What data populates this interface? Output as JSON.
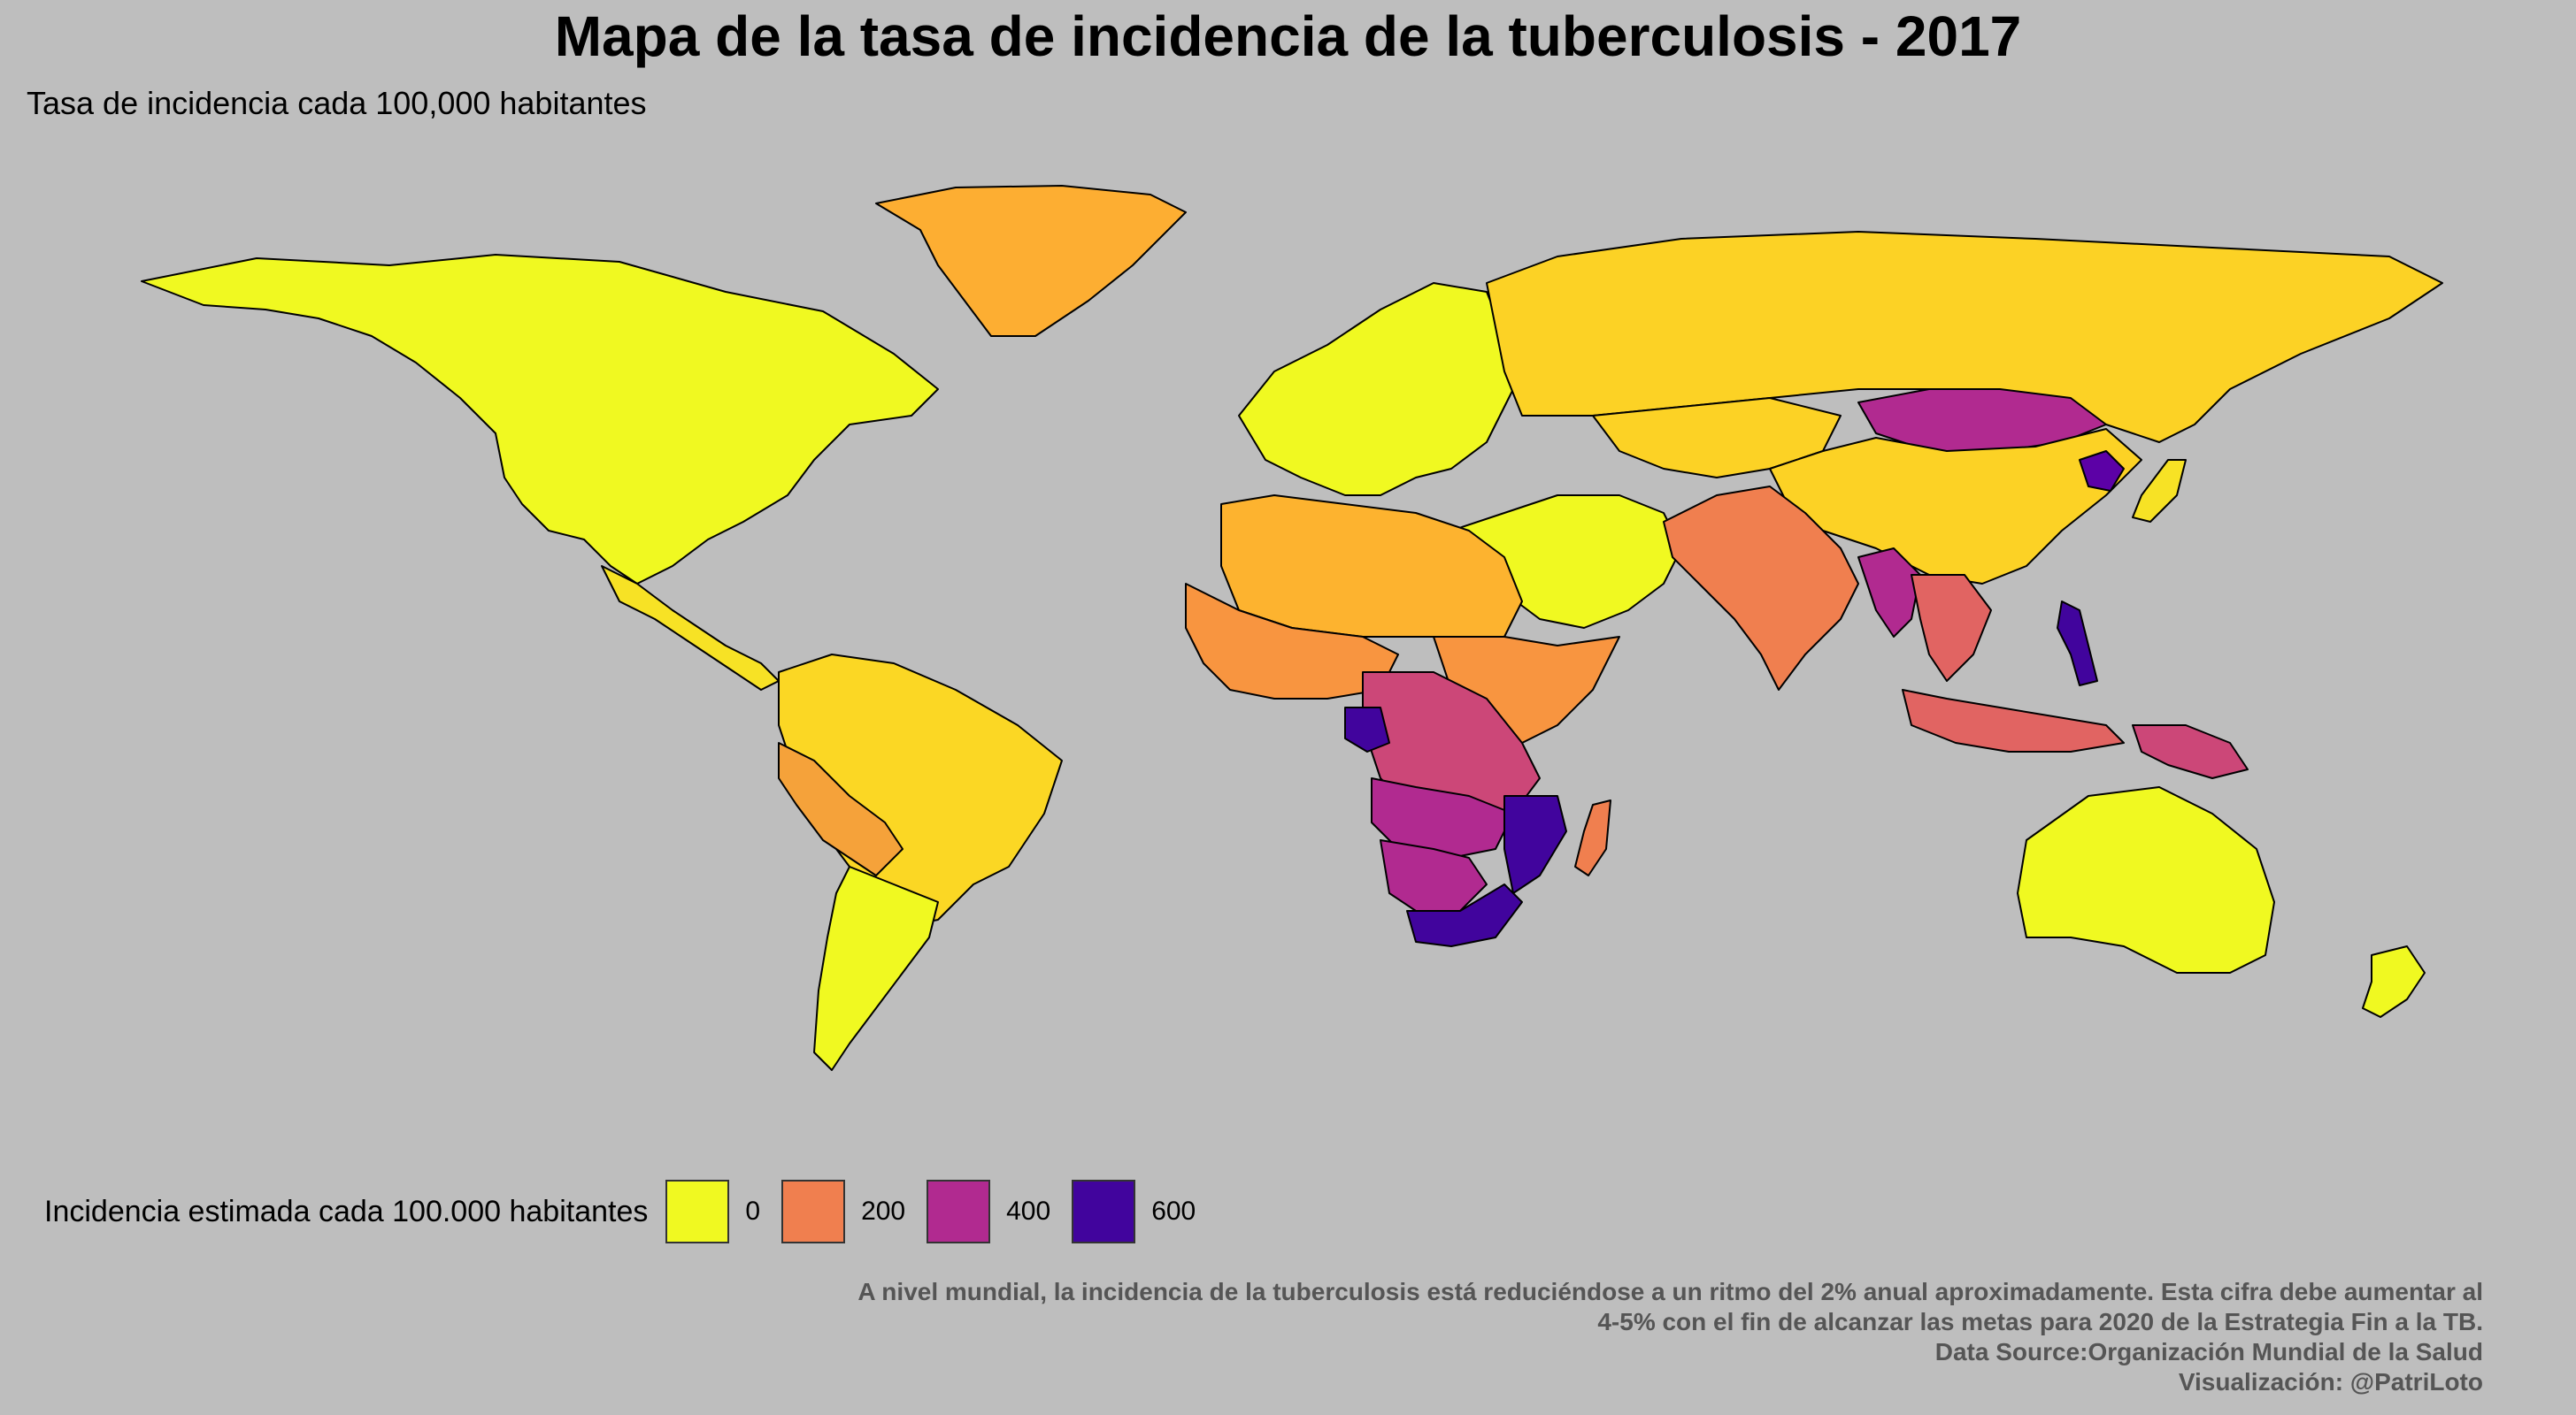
{
  "title": "Mapa de la tasa de incidencia de la tuberculosis - 2017",
  "subtitle": "Tasa de incidencia cada 100,000 habitantes",
  "legend": {
    "title": "Incidencia estimada cada 100.000 habitantes",
    "items": [
      {
        "label": "0",
        "color": "#f0f921"
      },
      {
        "label": "200",
        "color": "#f07f4f"
      },
      {
        "label": "400",
        "color": "#b12a90"
      },
      {
        "label": "600",
        "color": "#41049d"
      }
    ]
  },
  "caption": {
    "line1": "A nivel mundial, la incidencia de la tuberculosis está reduciéndose a un ritmo del 2% anual aproximadamente. Esta cifra debe aumentar al",
    "line2": "4-5% con el fin de alcanzar las metas para 2020 de la Estrategia Fin a la TB.",
    "line3": "Data Source:Organización Mundial de la Salud",
    "line4": "Visualización: @PatriLoto"
  },
  "map": {
    "background": "#bebebe",
    "border_color": "#000000",
    "regions": [
      {
        "name": "north-america",
        "color": "#f0f921"
      },
      {
        "name": "greenland",
        "color": "#fdae32"
      },
      {
        "name": "central-america",
        "color": "#f7e225"
      },
      {
        "name": "south-america-north",
        "color": "#fbd724"
      },
      {
        "name": "peru-bolivia",
        "color": "#f5a23a"
      },
      {
        "name": "chile-argentina",
        "color": "#f0f921"
      },
      {
        "name": "europe",
        "color": "#f0f921"
      },
      {
        "name": "russia",
        "color": "#fcd225"
      },
      {
        "name": "mongolia",
        "color": "#b12a90"
      },
      {
        "name": "north-korea",
        "color": "#5c01a6"
      },
      {
        "name": "china",
        "color": "#fcd225"
      },
      {
        "name": "india-pakistan",
        "color": "#f07f4f"
      },
      {
        "name": "myanmar",
        "color": "#b12a90"
      },
      {
        "name": "southeast-asia",
        "color": "#e16462"
      },
      {
        "name": "philippines",
        "color": "#41049d"
      },
      {
        "name": "indonesia",
        "color": "#e16462"
      },
      {
        "name": "papua-new-guinea",
        "color": "#cc4778"
      },
      {
        "name": "australia",
        "color": "#f0f921"
      },
      {
        "name": "new-zealand",
        "color": "#f0f921"
      },
      {
        "name": "japan",
        "color": "#f7e225"
      },
      {
        "name": "middle-east",
        "color": "#f0f921"
      },
      {
        "name": "north-africa",
        "color": "#fdb32f"
      },
      {
        "name": "west-africa",
        "color": "#f89540"
      },
      {
        "name": "horn-of-africa",
        "color": "#f89540"
      },
      {
        "name": "central-africa",
        "color": "#cc4778"
      },
      {
        "name": "gabon-congo",
        "color": "#41049d"
      },
      {
        "name": "angola-zambia",
        "color": "#b12a90"
      },
      {
        "name": "namibia-botswana",
        "color": "#b12a90"
      },
      {
        "name": "mozambique",
        "color": "#41049d"
      },
      {
        "name": "south-africa",
        "color": "#41049d"
      },
      {
        "name": "madagascar",
        "color": "#f07f4f"
      },
      {
        "name": "kazakhstan",
        "color": "#fcd225"
      }
    ]
  }
}
